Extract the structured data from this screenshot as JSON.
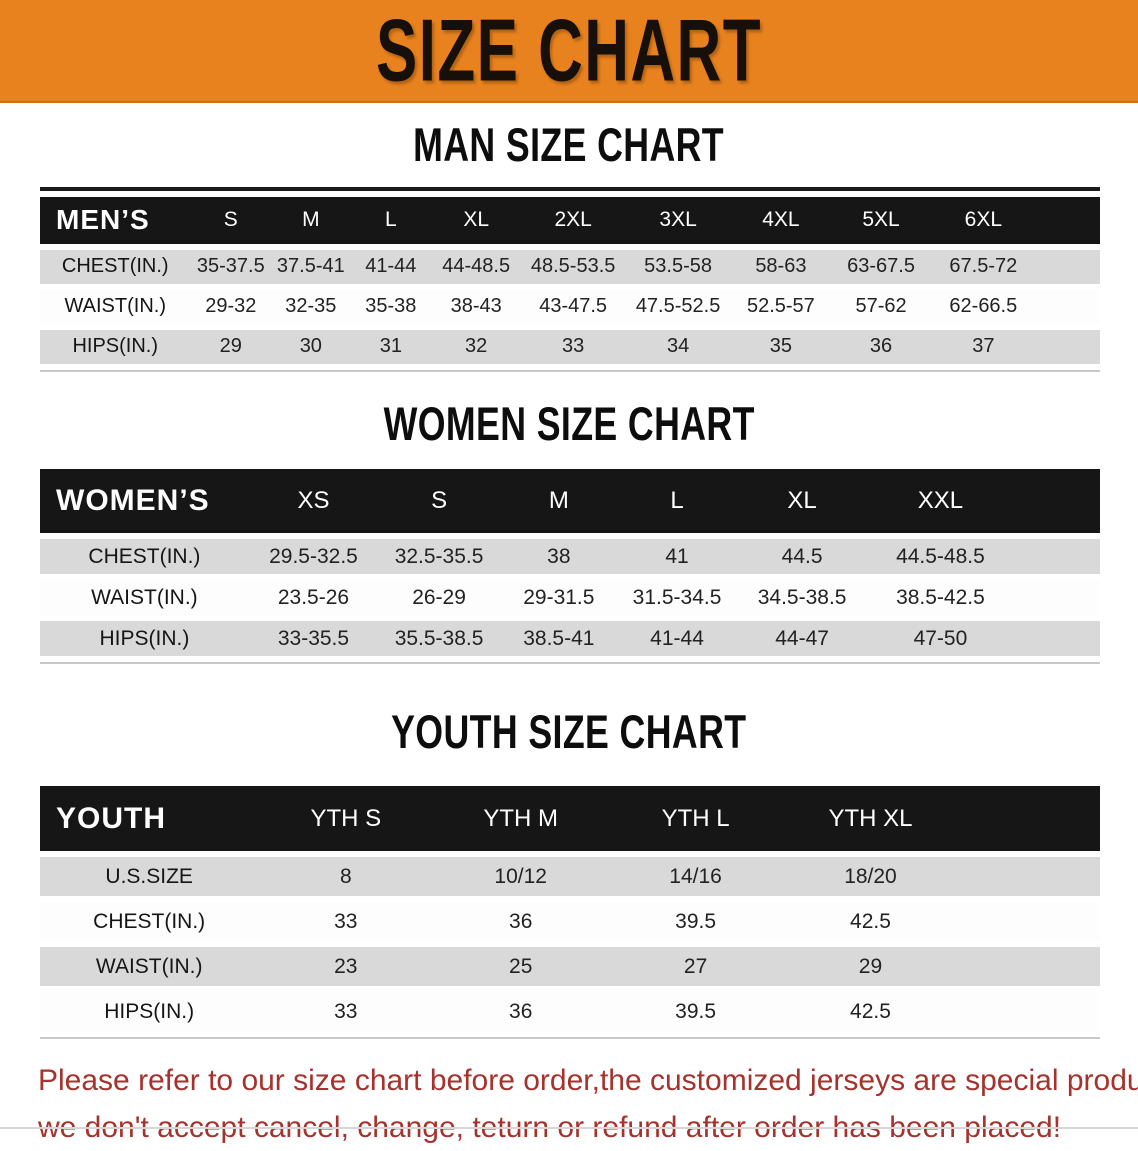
{
  "banner": {
    "title": "SIZE CHART",
    "background_color": "#e8821e",
    "text_color": "#17100a"
  },
  "sections": [
    {
      "title": "MAN SIZE CHART",
      "table": {
        "label": "MEN’S",
        "columns": [
          "S",
          "M",
          "L",
          "XL",
          "2XL",
          "3XL",
          "4XL",
          "5XL",
          "6XL"
        ],
        "rows": [
          {
            "label": "CHEST(IN.)",
            "values": [
              "35-37.5",
              "37.5-41",
              "41-44",
              "44-48.5",
              "48.5-53.5",
              "53.5-58",
              "58-63",
              "63-67.5",
              "67.5-72"
            ]
          },
          {
            "label": "WAIST(IN.)",
            "values": [
              "29-32",
              "32-35",
              "35-38",
              "38-43",
              "43-47.5",
              "47.5-52.5",
              "52.5-57",
              "57-62",
              "62-66.5"
            ]
          },
          {
            "label": "HIPS(IN.)",
            "values": [
              "29",
              "30",
              "31",
              "32",
              "33",
              "34",
              "35",
              "36",
              "37"
            ]
          }
        ]
      }
    },
    {
      "title": "WOMEN SIZE CHART",
      "table": {
        "label": "WOMEN’S",
        "columns": [
          "XS",
          "S",
          "M",
          "L",
          "XL",
          "XXL"
        ],
        "rows": [
          {
            "label": "CHEST(IN.)",
            "values": [
              "29.5-32.5",
              "32.5-35.5",
              "38",
              "41",
              "44.5",
              "44.5-48.5"
            ]
          },
          {
            "label": "WAIST(IN.)",
            "values": [
              "23.5-26",
              "26-29",
              "29-31.5",
              "31.5-34.5",
              "34.5-38.5",
              "38.5-42.5"
            ]
          },
          {
            "label": "HIPS(IN.)",
            "values": [
              "33-35.5",
              "35.5-38.5",
              "38.5-41",
              "41-44",
              "44-47",
              "47-50"
            ]
          }
        ]
      }
    },
    {
      "title": "YOUTH SIZE CHART",
      "table": {
        "label": "YOUTH",
        "columns": [
          "YTH S",
          "YTH M",
          "YTH L",
          "YTH XL"
        ],
        "rows": [
          {
            "label": "U.S.SIZE",
            "values": [
              "8",
              "10/12",
              "14/16",
              "18/20"
            ]
          },
          {
            "label": "CHEST(IN.)",
            "values": [
              "33",
              "36",
              "39.5",
              "42.5"
            ]
          },
          {
            "label": "WAIST(IN.)",
            "values": [
              "23",
              "25",
              "27",
              "29"
            ]
          },
          {
            "label": "HIPS(IN.)",
            "values": [
              "33",
              "36",
              "39.5",
              "42.5"
            ]
          }
        ]
      }
    }
  ],
  "table_style": {
    "header_bar_color": "#161616",
    "header_text_color": "#ffffff",
    "stripe_row_color": "#d9d9d9",
    "plain_row_color": "#fdfdfd"
  },
  "disclaimer": {
    "line1": "Please refer to our size chart before order,the customized jerseys are special products,",
    "line2": "we don't accept cancel, change, teturn or refund after order has been placed!",
    "text_color": "#a5322c"
  }
}
